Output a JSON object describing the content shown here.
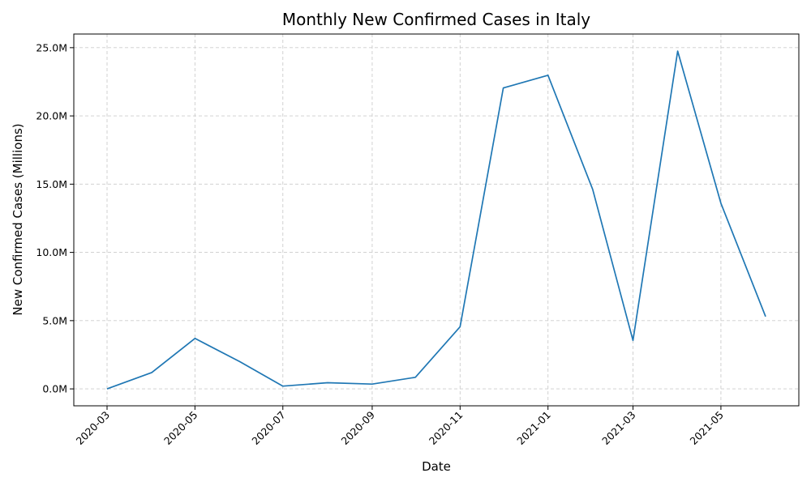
{
  "chart_data": {
    "type": "line",
    "title": "Monthly New Confirmed Cases in Italy",
    "xlabel": "Date",
    "ylabel": "New Confirmed Cases (Millions)",
    "x": [
      "2020-03",
      "2020-04",
      "2020-05",
      "2020-06",
      "2020-07",
      "2020-08",
      "2020-09",
      "2020-10",
      "2020-11",
      "2020-12",
      "2021-01",
      "2021-02",
      "2021-03",
      "2021-04",
      "2021-05",
      "2021-06"
    ],
    "series": [
      {
        "values": [
          0.0,
          1.2,
          3.7,
          2.0,
          0.2,
          0.45,
          0.35,
          0.85,
          4.55,
          22.05,
          22.98,
          14.62,
          3.55,
          24.75,
          13.6,
          5.3
        ],
        "color": "#1f77b4"
      }
    ],
    "xticks": [
      "2020-03",
      "2020-05",
      "2020-07",
      "2020-09",
      "2020-11",
      "2021-01",
      "2021-03",
      "2021-05"
    ],
    "yticks": [
      0,
      5,
      10,
      15,
      20,
      25
    ],
    "ytick_labels": [
      "0.0M",
      "5.0M",
      "10.0M",
      "15.0M",
      "20.0M",
      "25.0M"
    ],
    "ylim": [
      -1.24,
      26.0
    ],
    "grid": true
  }
}
